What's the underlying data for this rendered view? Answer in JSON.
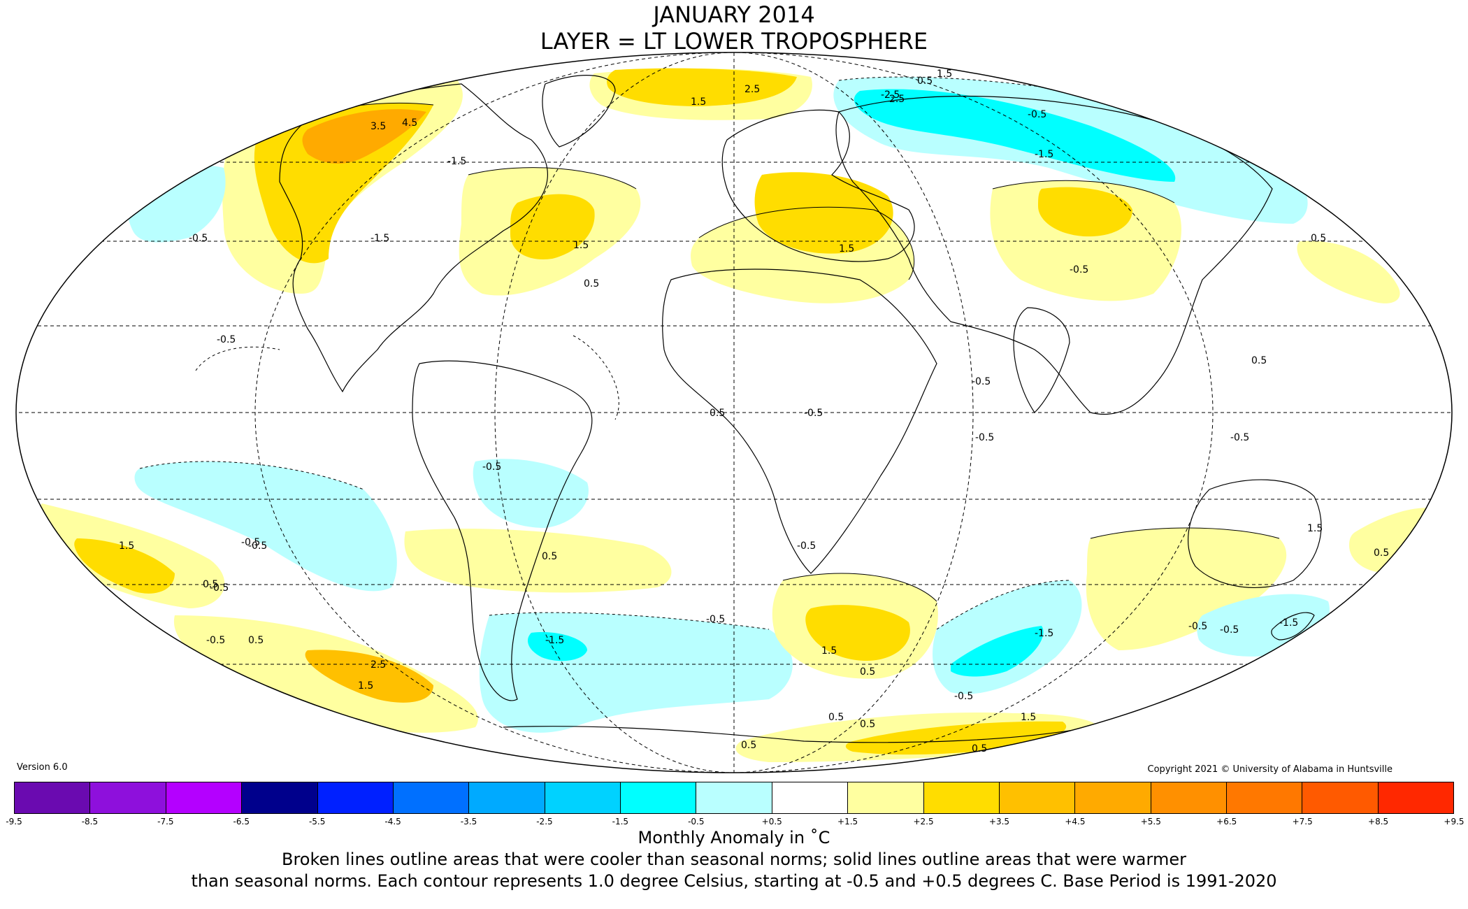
{
  "title": "JANUARY 2014",
  "subtitle": "LAYER = LT LOWER TROPOSPHERE",
  "version": "Version 6.0",
  "copyright": "Copyright 2021 © University of Alabama in Huntsville",
  "legend": {
    "unit_label": "Monthly Anomaly in ˚C",
    "note_line1": "Broken lines outline areas that were cooler than seasonal norms; solid lines outline areas that were warmer",
    "note_line2": "than seasonal norms. Each contour represents 1.0 degree Celsius, starting at -0.5 and +0.5 degrees C. Base Period is 1991-2020",
    "ticks": [
      "-9.5",
      "-8.5",
      "-7.5",
      "-6.5",
      "-5.5",
      "-4.5",
      "-3.5",
      "-2.5",
      "-1.5",
      "-0.5",
      "+0.5",
      "+1.5",
      "+2.5",
      "+3.5",
      "+4.5",
      "+5.5",
      "+6.5",
      "+7.5",
      "+8.5",
      "+9.5"
    ],
    "colors": [
      "#3a0a5e",
      "#6a0ab0",
      "#8e10dc",
      "#b400ff",
      "#00008c",
      "#0020ff",
      "#0070ff",
      "#00aaff",
      "#00d2ff",
      "#00ffff",
      "#b9ffff",
      "#ffffff",
      "#ffffa0",
      "#ffdd00",
      "#ffc000",
      "#ffaa00",
      "#ff9000",
      "#ff7800",
      "#ff5a00",
      "#ff2800",
      "#e60000",
      "#b30000"
    ]
  },
  "map_labels": [
    "4.5",
    "3.5",
    "2.5",
    "1.5",
    "-1.5",
    "-0.5",
    "0.5",
    "1.5",
    "-2.5",
    "2.5",
    "-1.5",
    "-0.5",
    "-1.5",
    "1.5",
    "0.5",
    "1.5",
    "0.5",
    "-0.5",
    "-0.5",
    "0.5",
    "-0.5",
    "-0.5",
    "-0.5",
    "-0.5",
    "-0.5",
    "-0.5",
    "-0.5",
    "0.5",
    "-0.5",
    "1.5",
    "-0.5",
    "0.5",
    "1.5",
    "0.5",
    "-0.5",
    "0.5",
    "1.5",
    "2.5",
    "-1.5",
    "-1.5",
    "-0.5",
    "-0.5",
    "-0.5",
    "1.5",
    "0.5",
    "-0.5",
    "-1.5",
    "0.5",
    "0.5",
    "1.5",
    "0.5",
    "0.5",
    "0.5"
  ]
}
